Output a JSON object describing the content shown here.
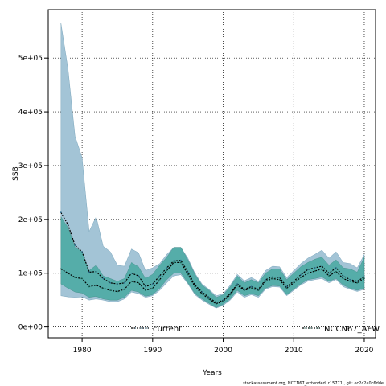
{
  "chart_data": {
    "type": "area",
    "title": "",
    "xlabel": "Years",
    "ylabel": "SSB",
    "xlim": [
      1975.2,
      2021.6
    ],
    "ylim": [
      -20000,
      590000
    ],
    "grid": true,
    "legend_placement": "bottom",
    "x_ticks": [
      1980,
      1990,
      2000,
      2010,
      2020
    ],
    "x_tick_labels": [
      "1980",
      "1990",
      "2000",
      "2010",
      "2020"
    ],
    "y_ticks": [
      0,
      100000,
      200000,
      300000,
      400000,
      500000
    ],
    "y_tick_labels": [
      "0e+00",
      "1e+05",
      "2e+05",
      "3e+05",
      "4e+05",
      "5e+05"
    ],
    "years": [
      1977,
      1978,
      1979,
      1980,
      1981,
      1982,
      1983,
      1984,
      1985,
      1986,
      1987,
      1988,
      1989,
      1990,
      1991,
      1992,
      1993,
      1994,
      1995,
      1996,
      1997,
      1998,
      1999,
      2000,
      2001,
      2002,
      2003,
      2004,
      2005,
      2006,
      2007,
      2008,
      2009,
      2010,
      2011,
      2012,
      2013,
      2014,
      2015,
      2016,
      2017,
      2018,
      2019,
      2020
    ],
    "series": [
      {
        "name": "current",
        "color": "#2c6e8f",
        "fill": "#a3c4d6",
        "values": [
          213000,
          190000,
          152000,
          140000,
          102000,
          103000,
          90000,
          82000,
          80000,
          82000,
          100000,
          95000,
          75000,
          80000,
          95000,
          110000,
          123000,
          124000,
          102000,
          78000,
          65000,
          55000,
          45000,
          50000,
          62000,
          80000,
          70000,
          75000,
          70000,
          88000,
          93000,
          92000,
          75000,
          85000,
          97000,
          107000,
          110000,
          113000,
          100000,
          110000,
          95000,
          88000,
          85000,
          93000
        ],
        "upper": [
          565000,
          480000,
          355000,
          315000,
          178000,
          205000,
          150000,
          140000,
          115000,
          113000,
          145000,
          138000,
          105000,
          110000,
          118000,
          135000,
          148000,
          148000,
          128000,
          100000,
          80000,
          70000,
          58000,
          62000,
          78000,
          98000,
          86000,
          92000,
          85000,
          105000,
          113000,
          112000,
          92000,
          105000,
          118000,
          128000,
          135000,
          143000,
          128000,
          140000,
          120000,
          118000,
          110000,
          135000
        ],
        "lower": [
          58000,
          56000,
          55000,
          56000,
          50000,
          52000,
          50000,
          47000,
          47000,
          52000,
          65000,
          62000,
          55000,
          58000,
          68000,
          82000,
          95000,
          97000,
          80000,
          60000,
          50000,
          42000,
          35000,
          40000,
          50000,
          65000,
          55000,
          60000,
          55000,
          70000,
          75000,
          74000,
          58000,
          68000,
          78000,
          85000,
          88000,
          90000,
          82000,
          88000,
          75000,
          70000,
          66000,
          70000
        ]
      },
      {
        "name": "NCCN67_AFW",
        "color": "#1d6b5c",
        "fill": "#3ba59a",
        "values": [
          108000,
          100000,
          92000,
          90000,
          75000,
          78000,
          72000,
          68000,
          66000,
          70000,
          85000,
          82000,
          68000,
          72000,
          88000,
          105000,
          120000,
          120000,
          98000,
          75000,
          62000,
          52000,
          43000,
          48000,
          60000,
          78000,
          68000,
          72000,
          68000,
          85000,
          90000,
          88000,
          72000,
          82000,
          92000,
          100000,
          104000,
          108000,
          95000,
          103000,
          90000,
          85000,
          82000,
          90000
        ],
        "upper": [
          205000,
          185000,
          148000,
          140000,
          105000,
          115000,
          95000,
          90000,
          85000,
          90000,
          120000,
          112000,
          90000,
          98000,
          115000,
          130000,
          148000,
          148000,
          125000,
          98000,
          78000,
          68000,
          55000,
          60000,
          75000,
          95000,
          82000,
          88000,
          82000,
          100000,
          108000,
          108000,
          88000,
          100000,
          112000,
          120000,
          126000,
          130000,
          115000,
          125000,
          110000,
          108000,
          102000,
          130000
        ],
        "lower": [
          80000,
          72000,
          65000,
          63000,
          55000,
          57000,
          52000,
          50000,
          50000,
          55000,
          68000,
          65000,
          57000,
          60000,
          72000,
          88000,
          100000,
          100000,
          82000,
          62000,
          52000,
          44000,
          36000,
          42000,
          52000,
          68000,
          58000,
          62000,
          58000,
          72000,
          77000,
          76000,
          60000,
          70000,
          80000,
          88000,
          90000,
          93000,
          85000,
          90000,
          78000,
          72000,
          68000,
          72000
        ]
      }
    ],
    "footnote": "stockassessment.org, NCCN67_extended, r15771 , git: ec2c2a0c6dde"
  }
}
